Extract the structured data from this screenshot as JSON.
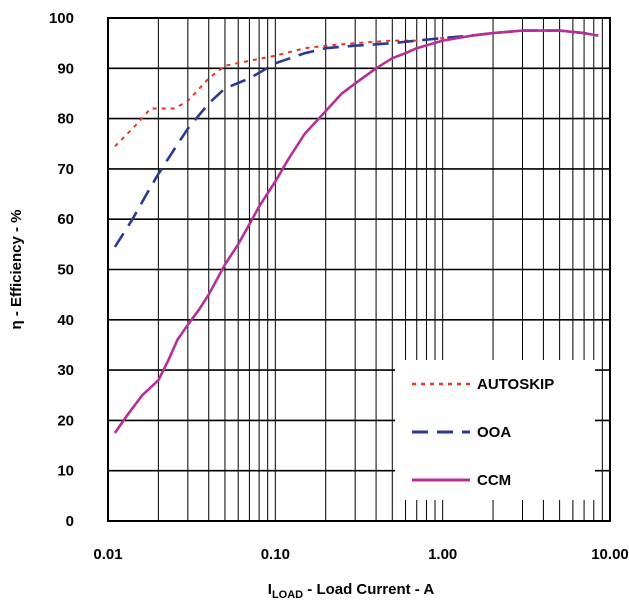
{
  "chart_data": {
    "type": "line",
    "title": "",
    "xlabel": {
      "prefix": "I",
      "subscript": "LOAD",
      "suffix": " - Load Current - A"
    },
    "ylabel": "η - Efficiency - %",
    "x_scale": "log",
    "xlim": [
      0.01,
      10
    ],
    "ylim": [
      0,
      100
    ],
    "x_tick_labels": [
      "0.01",
      "0.10",
      "1.00",
      "10.00"
    ],
    "y_tick_labels": [
      "0",
      "10",
      "20",
      "30",
      "40",
      "50",
      "60",
      "70",
      "80",
      "90",
      "100"
    ],
    "grid": true,
    "legend_position": "lower-right",
    "series": [
      {
        "name": "AUTOSKIP",
        "color": "#e8332a",
        "style": "dotted",
        "x": [
          0.011,
          0.014,
          0.018,
          0.02,
          0.025,
          0.03,
          0.04,
          0.05,
          0.07,
          0.1,
          0.15,
          0.2,
          0.3,
          0.5,
          0.7,
          1.0,
          1.5,
          2.0,
          3.0,
          5.0,
          7.0,
          8.5
        ],
        "y": [
          74.5,
          78,
          82,
          82,
          82,
          83.5,
          88,
          90.5,
          91.5,
          92.5,
          94,
          94.5,
          95,
          95.5,
          95.5,
          96,
          96.5,
          97,
          97.5,
          97.5,
          97,
          96.5
        ]
      },
      {
        "name": "OOA",
        "color": "#2b3a8f",
        "style": "dashed",
        "x": [
          0.011,
          0.014,
          0.017,
          0.02,
          0.025,
          0.03,
          0.04,
          0.05,
          0.07,
          0.1,
          0.15,
          0.2,
          0.3,
          0.5,
          0.7,
          1.0,
          1.5,
          2.0,
          3.0,
          5.0,
          7.0,
          8.5
        ],
        "y": [
          54.5,
          60,
          65,
          69,
          74,
          78,
          83,
          86,
          88,
          91,
          93,
          94,
          94.5,
          95,
          95.5,
          96,
          96.5,
          97,
          97.5,
          97.5,
          97,
          96.5
        ]
      },
      {
        "name": "CCM",
        "color": "#b52f97",
        "style": "solid",
        "x": [
          0.011,
          0.013,
          0.016,
          0.02,
          0.023,
          0.026,
          0.03,
          0.035,
          0.04,
          0.05,
          0.06,
          0.07,
          0.08,
          0.1,
          0.12,
          0.15,
          0.2,
          0.25,
          0.3,
          0.4,
          0.5,
          0.6,
          0.7,
          1.0,
          1.5,
          2.0,
          3.0,
          4.0,
          5.0,
          7.0,
          8.5
        ],
        "y": [
          17.5,
          21,
          25,
          28,
          32,
          36,
          39,
          42,
          45,
          51,
          55,
          59,
          62.5,
          67.5,
          72,
          77,
          81.5,
          85,
          87,
          90,
          92,
          93,
          94,
          95.5,
          96.5,
          97,
          97.5,
          97.5,
          97.5,
          97,
          96.5
        ]
      }
    ]
  }
}
